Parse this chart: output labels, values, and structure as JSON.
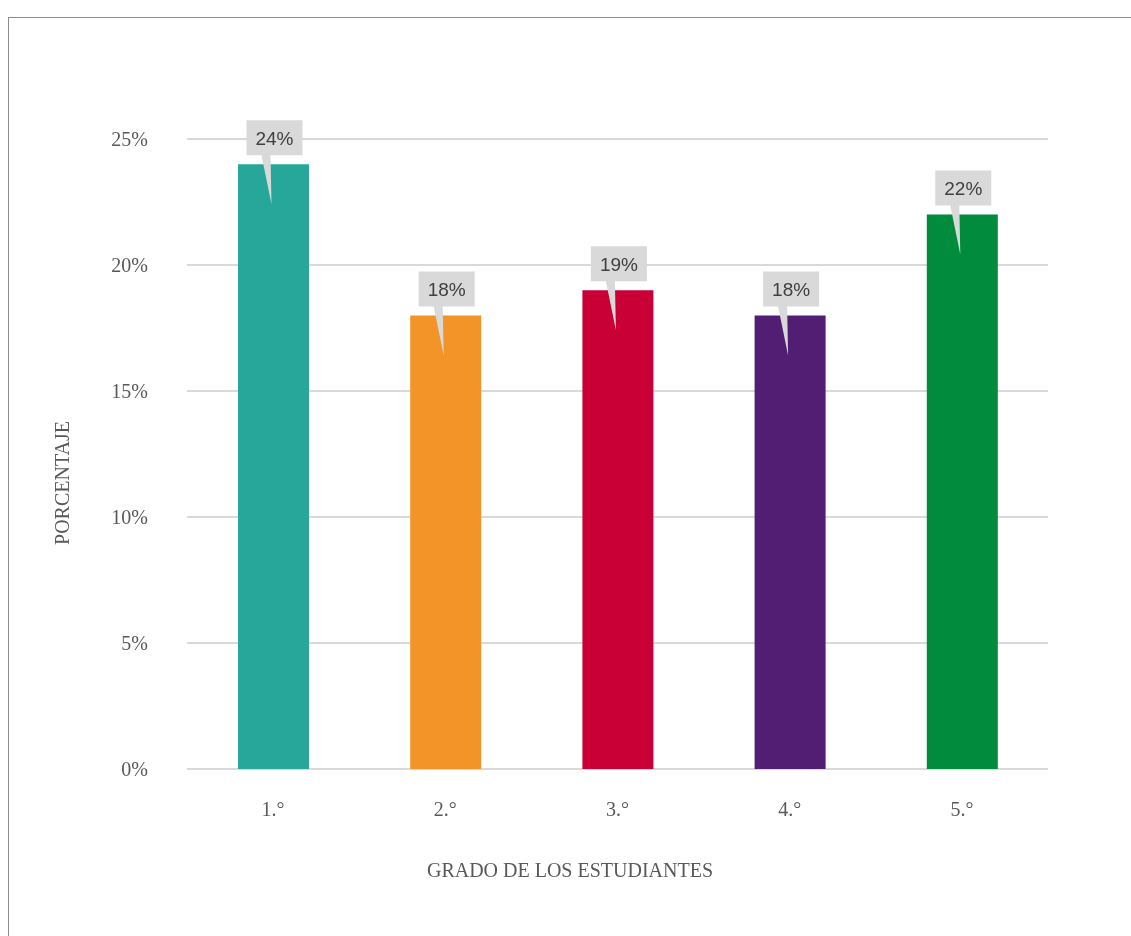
{
  "chart_data": {
    "type": "bar",
    "xlabel": "GRADO DE LOS ESTUDIANTES",
    "ylabel": "PORCENTAJE",
    "categories": [
      "1.°",
      "2.°",
      "3.°",
      "4.°",
      "5.°"
    ],
    "values": [
      24,
      18,
      19,
      18,
      22
    ],
    "colors": [
      "#27a69a",
      "#f29428",
      "#c80036",
      "#521e73",
      "#008c3c"
    ],
    "value_labels": [
      "24%",
      "18%",
      "19%",
      "18%",
      "22%"
    ],
    "ylim": [
      0,
      25
    ],
    "yticks": [
      {
        "value": 0,
        "label": "0%"
      },
      {
        "value": 5,
        "label": "5%"
      },
      {
        "value": 10,
        "label": "10%"
      },
      {
        "value": 15,
        "label": "15%"
      },
      {
        "value": 20,
        "label": "20%"
      },
      {
        "value": 25,
        "label": "25%"
      }
    ],
    "grid": "y"
  }
}
